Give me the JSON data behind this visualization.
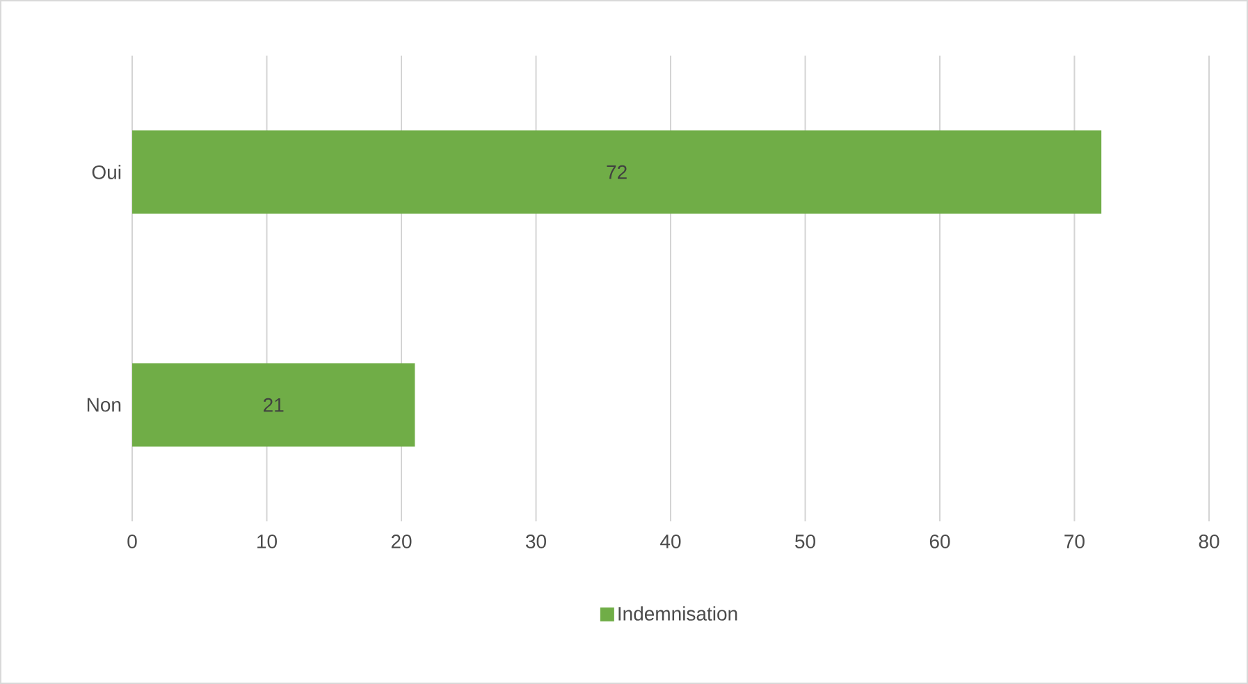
{
  "chart_data": {
    "type": "bar",
    "orientation": "horizontal",
    "categories": [
      "Oui",
      "Non"
    ],
    "series": [
      {
        "name": "Indemnisation",
        "color": "#70ad47",
        "values": [
          72,
          21
        ]
      }
    ],
    "xlim": [
      0,
      80
    ],
    "xticks": [
      0,
      10,
      20,
      30,
      40,
      50,
      60,
      70,
      80
    ],
    "grid": "x",
    "legend": "bottom",
    "data_labels": true
  }
}
